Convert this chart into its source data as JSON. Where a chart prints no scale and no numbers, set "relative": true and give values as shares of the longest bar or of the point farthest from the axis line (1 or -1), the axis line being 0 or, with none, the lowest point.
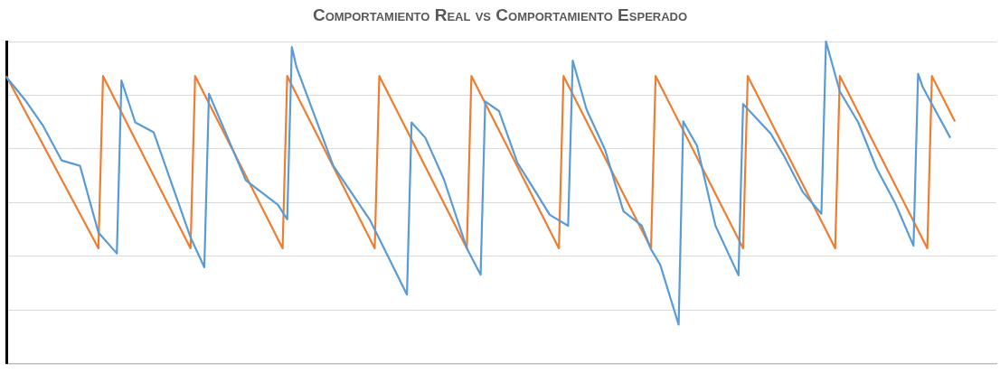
{
  "chart_data": {
    "type": "line",
    "title": "Comportamiento Real vs Comportamiento Esperado",
    "relative": true,
    "grid": "y",
    "legend": false,
    "marker": "none",
    "line_style": "solid",
    "categories": [
      null,
      null,
      null,
      null,
      null,
      null,
      null,
      null,
      null,
      null,
      null,
      null,
      null,
      null,
      null,
      null,
      null,
      null,
      null,
      null,
      null,
      null,
      null,
      null,
      null,
      null,
      null,
      null,
      null,
      null,
      null,
      null,
      null,
      null,
      null,
      null,
      null,
      null,
      null,
      null,
      null,
      null,
      null,
      null,
      null,
      null,
      null,
      null,
      null,
      null,
      null,
      null,
      null,
      null,
      null,
      null,
      null,
      null,
      null,
      null,
      null,
      null,
      null,
      null,
      null,
      null,
      null,
      null,
      null,
      null,
      null,
      null,
      null,
      null,
      null,
      null,
      null,
      null,
      null,
      null,
      null,
      null,
      null,
      null,
      null,
      null,
      null,
      null,
      null,
      null,
      null,
      null,
      null,
      null,
      null,
      null,
      null,
      null,
      null,
      null,
      null,
      null,
      null,
      null,
      null,
      null,
      null,
      null,
      null,
      null,
      null,
      null,
      null,
      null,
      null,
      null,
      null,
      null,
      null,
      null,
      null,
      null,
      null,
      null,
      null,
      null,
      null,
      null,
      null,
      null,
      null,
      null,
      null,
      null,
      null,
      null,
      null,
      null,
      null,
      null,
      null,
      null,
      null,
      null,
      null,
      null,
      null,
      null,
      null,
      null,
      null,
      null,
      null,
      null,
      null,
      null,
      null,
      null,
      null,
      null,
      null,
      null,
      null,
      null,
      null,
      null,
      null,
      null,
      null,
      null,
      null,
      null,
      null,
      null,
      null,
      null,
      null,
      null,
      null,
      null,
      null,
      null,
      null,
      null,
      null,
      null,
      null,
      null,
      null,
      null,
      null,
      null,
      null,
      null,
      null,
      null,
      null,
      null,
      null,
      null,
      null,
      null,
      null,
      null,
      null,
      null,
      null,
      null,
      null,
      null,
      null,
      null,
      null,
      null,
      null,
      null
    ],
    "series": [
      {
        "color": "#5b9bd5",
        "values": [
          0.89,
          null,
          null,
          null,
          0.82,
          null,
          null,
          null,
          0.738,
          null,
          null,
          null,
          0.631,
          null,
          null,
          null,
          0.614,
          null,
          null,
          null,
          0.407,
          null,
          null,
          null,
          0.342,
          0.879,
          null,
          null,
          0.749,
          null,
          null,
          null,
          0.718,
          null,
          null,
          null,
          null,
          null,
          null,
          null,
          0.392,
          null,
          null,
          0.299,
          0.838,
          null,
          null,
          0.738,
          null,
          null,
          null,
          null,
          0.569,
          null,
          null,
          null,
          null,
          null,
          null,
          0.493,
          null,
          0.448,
          0.983,
          0.921,
          null,
          null,
          null,
          null,
          null,
          null,
          null,
          0.614,
          null,
          null,
          null,
          null,
          null,
          null,
          null,
          0.445,
          null,
          null,
          null,
          null,
          null,
          null,
          null,
          0.214,
          0.749,
          null,
          null,
          0.701,
          null,
          null,
          null,
          0.573,
          null,
          null,
          null,
          null,
          0.358,
          null,
          null,
          0.276,
          0.814,
          null,
          null,
          0.784,
          null,
          null,
          null,
          0.623,
          null,
          null,
          null,
          0.532,
          null,
          null,
          0.462,
          null,
          null,
          null,
          0.428,
          0.941,
          null,
          null,
          0.789,
          null,
          null,
          null,
          0.665,
          null,
          null,
          null,
          0.473,
          null,
          null,
          null,
          0.428,
          null,
          0.355,
          null,
          0.307,
          null,
          null,
          null,
          0.121,
          0.752,
          null,
          null,
          0.676,
          null,
          null,
          null,
          0.428,
          null,
          null,
          null,
          null,
          0.274,
          0.806,
          null,
          null,
          null,
          null,
          null,
          0.714,
          null,
          null,
          0.642,
          null,
          null,
          null,
          0.532,
          null,
          null,
          null,
          0.465,
          1.0,
          null,
          null,
          0.845,
          null,
          null,
          null,
          0.749,
          null,
          null,
          null,
          0.606,
          null,
          null,
          null,
          0.499,
          null,
          null,
          null,
          0.366,
          0.9,
          0.859,
          null,
          0.806,
          null,
          null,
          null,
          0.701,
          null,
          null,
          null,
          null,
          null,
          null,
          null,
          null,
          null,
          null
        ]
      },
      {
        "color": "#ed7d31",
        "values": [
          0.893,
          null,
          null,
          null,
          null,
          null,
          null,
          null,
          null,
          null,
          null,
          null,
          null,
          null,
          null,
          null,
          null,
          null,
          null,
          null,
          0.358,
          0.893,
          null,
          null,
          null,
          null,
          null,
          null,
          null,
          null,
          null,
          null,
          null,
          null,
          null,
          null,
          null,
          null,
          null,
          null,
          0.358,
          0.893,
          null,
          null,
          null,
          null,
          null,
          null,
          null,
          null,
          null,
          null,
          null,
          null,
          null,
          null,
          null,
          null,
          null,
          null,
          0.358,
          0.893,
          null,
          null,
          null,
          null,
          null,
          null,
          null,
          null,
          null,
          null,
          null,
          null,
          null,
          null,
          null,
          null,
          null,
          null,
          0.358,
          0.893,
          null,
          null,
          null,
          null,
          null,
          null,
          null,
          null,
          null,
          null,
          null,
          null,
          null,
          null,
          null,
          null,
          null,
          null,
          0.358,
          0.893,
          null,
          null,
          null,
          null,
          null,
          null,
          null,
          null,
          null,
          null,
          null,
          null,
          null,
          null,
          null,
          null,
          null,
          null,
          0.358,
          0.893,
          null,
          null,
          null,
          null,
          null,
          null,
          null,
          null,
          null,
          null,
          null,
          null,
          null,
          null,
          null,
          null,
          null,
          null,
          0.358,
          0.893,
          null,
          null,
          null,
          null,
          null,
          null,
          null,
          null,
          null,
          null,
          null,
          null,
          null,
          null,
          null,
          null,
          null,
          null,
          0.358,
          0.893,
          null,
          null,
          null,
          null,
          null,
          null,
          null,
          null,
          null,
          null,
          null,
          null,
          null,
          null,
          null,
          null,
          null,
          null,
          0.358,
          0.893,
          null,
          null,
          null,
          null,
          null,
          null,
          null,
          null,
          null,
          null,
          null,
          null,
          null,
          null,
          null,
          null,
          null,
          null,
          0.358,
          0.893,
          null,
          null,
          null,
          null,
          0.752,
          null,
          null,
          null,
          null,
          null,
          null,
          null,
          null,
          null
        ]
      }
    ]
  }
}
